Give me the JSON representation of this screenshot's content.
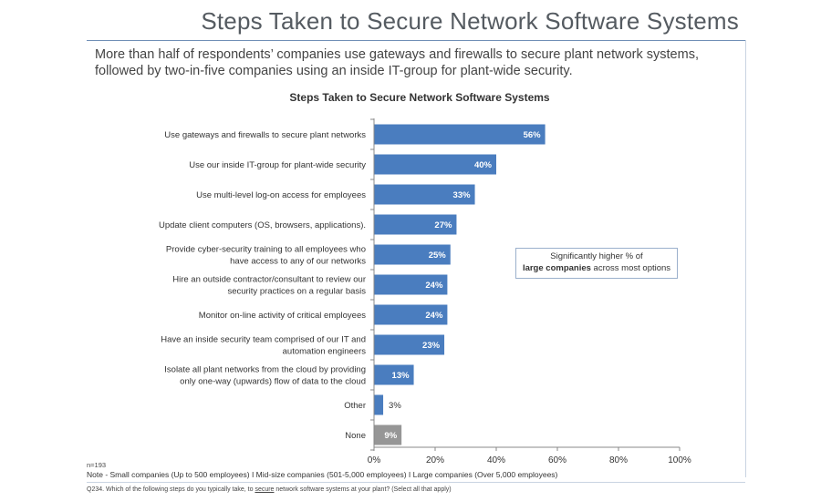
{
  "slide": {
    "title": "Steps Taken to Secure Network Software Systems",
    "subtitle": "More than half of respondents’ companies use gateways and firewalls to secure plant network systems, followed by two-in-five companies using an inside IT-group for plant-wide security."
  },
  "callout": {
    "line1": "Significantly higher % of",
    "line2_bold": "large companies",
    "line2_rest": " across most options"
  },
  "footer": {
    "n": "n=193",
    "note": "Note - Small companies (Up to 500 employees) I Mid-size companies (501-5,000 employees) I Large companies (Over 5,000 employees)",
    "question_pre": "Q234. Which of the following steps do you typically take, to ",
    "question_underlined": "secure",
    "question_post": " network software systems at your plant? (Select all that apply)"
  },
  "colors": {
    "bar": "#4a7dbf",
    "bar_none": "#969696",
    "axis": "#888888",
    "label": "#333333"
  },
  "chart_data": {
    "type": "bar",
    "orientation": "horizontal",
    "title": "Steps Taken to Secure Network Software Systems",
    "categories": [
      [
        "Use gateways and firewalls to secure plant networks"
      ],
      [
        "Use our inside IT-group for plant-wide security"
      ],
      [
        "Use multi-level log-on access for employees"
      ],
      [
        "Update client computers (OS, browsers, applications)."
      ],
      [
        "Provide cyber-security training to all employees who",
        "have access to any of our networks"
      ],
      [
        "Hire an outside contractor/consultant to review our",
        "security practices on a regular basis"
      ],
      [
        "Monitor on-line activity of critical employees"
      ],
      [
        "Have an inside security team comprised of our IT and",
        "automation engineers"
      ],
      [
        "Isolate all plant networks from the cloud by providing",
        "only one-way (upwards) flow of data to the cloud"
      ],
      [
        "Other"
      ],
      [
        "None"
      ]
    ],
    "values": [
      56,
      40,
      33,
      27,
      25,
      24,
      24,
      23,
      13,
      3,
      9
    ],
    "data_labels": [
      "56%",
      "40%",
      "33%",
      "27%",
      "25%",
      "24%",
      "24%",
      "23%",
      "13%",
      "3%",
      "9%"
    ],
    "highlight_gray": [
      false,
      false,
      false,
      false,
      false,
      false,
      false,
      false,
      false,
      false,
      true
    ],
    "xlim": [
      0,
      100
    ],
    "xticks": [
      0,
      20,
      40,
      60,
      80,
      100
    ],
    "xtick_labels": [
      "0%",
      "20%",
      "40%",
      "60%",
      "80%",
      "100%"
    ],
    "grid": false,
    "legend": "none"
  }
}
